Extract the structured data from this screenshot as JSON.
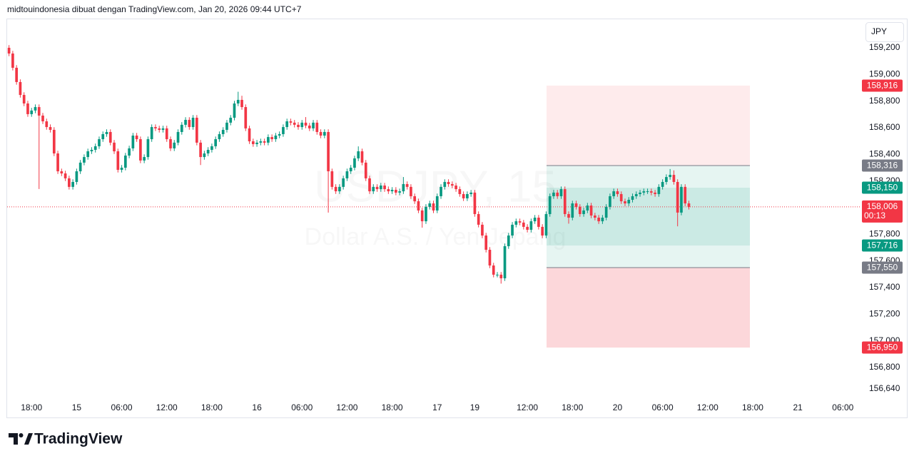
{
  "header": {
    "text": "midtouindonesia dibuat dengan TradingView.com, Jan 20, 2026 09:44 UTC+7"
  },
  "footer": {
    "brand": "TradingView"
  },
  "chart_data": {
    "type": "candlestick",
    "watermark": {
      "symbol": "USDJPY, 15",
      "description": "Dollar A.S. / Yen Jepang"
    },
    "currency": "JPY",
    "up_color": "#089981",
    "down_color": "#f23645",
    "grid": false,
    "ylim": [
      156.57,
      159.414
    ],
    "yticks": [
      {
        "value": 159.2,
        "label": "159,200"
      },
      {
        "value": 159.0,
        "label": "159,000"
      },
      {
        "value": 158.8,
        "label": "158,800"
      },
      {
        "value": 158.6,
        "label": "158,600"
      },
      {
        "value": 158.4,
        "label": "158,400"
      },
      {
        "value": 158.2,
        "label": "158,200"
      },
      {
        "value": 157.8,
        "label": "157,800"
      },
      {
        "value": 157.6,
        "label": "157,600"
      },
      {
        "value": 157.4,
        "label": "157,400"
      },
      {
        "value": 157.2,
        "label": "157,200"
      },
      {
        "value": 157.0,
        "label": "157,000"
      },
      {
        "value": 156.8,
        "label": "156,800"
      },
      {
        "value": 156.64,
        "label": "156,640"
      }
    ],
    "categories": [
      null,
      null,
      null,
      null,
      null,
      null,
      "18:00",
      null,
      null,
      null,
      null,
      null,
      null,
      null,
      null,
      null,
      null,
      null,
      "15",
      null,
      null,
      null,
      null,
      null,
      null,
      null,
      null,
      null,
      null,
      null,
      "06:00",
      null,
      null,
      null,
      null,
      null,
      null,
      null,
      null,
      null,
      null,
      null,
      "12:00",
      null,
      null,
      null,
      null,
      null,
      null,
      null,
      null,
      null,
      null,
      null,
      "18:00",
      null,
      null,
      null,
      null,
      null,
      null,
      null,
      null,
      null,
      null,
      null,
      "16",
      null,
      null,
      null,
      null,
      null,
      null,
      null,
      null,
      null,
      null,
      null,
      "06:00",
      null,
      null,
      null,
      null,
      null,
      null,
      null,
      null,
      null,
      null,
      null,
      "12:00",
      null,
      null,
      null,
      null,
      null,
      null,
      null,
      null,
      null,
      null,
      null,
      "18:00",
      null,
      null,
      null,
      null,
      null,
      null,
      null,
      null,
      null,
      null,
      null,
      "17",
      null,
      null,
      null,
      null,
      null,
      null,
      null,
      null,
      null,
      "19",
      null,
      null,
      null,
      null,
      null,
      null,
      null,
      null,
      null,
      null,
      null,
      null,
      null,
      "12:00",
      null,
      null,
      null,
      null,
      null,
      null,
      null,
      null,
      null,
      null,
      null,
      "18:00",
      null,
      null,
      null,
      null,
      null,
      null,
      null,
      null,
      null,
      null,
      null,
      "20",
      null,
      null,
      null,
      null,
      null,
      null,
      null,
      null,
      null,
      null,
      null,
      "06:00",
      null,
      null,
      null,
      null,
      null,
      null,
      null,
      null,
      null,
      null,
      null,
      "12:00",
      null,
      null,
      null,
      null,
      null,
      null,
      null,
      null,
      null,
      null,
      null,
      "18:00",
      null,
      null,
      null,
      null,
      null,
      null,
      null,
      null,
      null,
      null,
      null,
      "21",
      null,
      null,
      null,
      null,
      null,
      null,
      null,
      null,
      null,
      null,
      null,
      "06:00",
      null,
      null,
      null,
      null
    ],
    "open": [
      159.2,
      159.157,
      159.05,
      158.943,
      158.846,
      158.782,
      158.702,
      158.729,
      158.755,
      158.691,
      158.648,
      158.605,
      158.584,
      158.407,
      158.273,
      158.257,
      158.22,
      158.156,
      158.193,
      158.273,
      158.338,
      158.38,
      158.423,
      158.434,
      158.461,
      158.514,
      158.552,
      158.568,
      158.488,
      158.423,
      158.284,
      158.3,
      158.391,
      158.445,
      158.541,
      158.514,
      158.354,
      158.38,
      158.514,
      158.605,
      158.595,
      158.584,
      158.595,
      158.514,
      158.445,
      158.488,
      158.568,
      158.622,
      158.659,
      158.605,
      158.675,
      158.488,
      158.38,
      158.407,
      158.434,
      158.461,
      158.514,
      158.552,
      158.584,
      158.638,
      158.675,
      158.782,
      158.809,
      158.755,
      158.595,
      158.498,
      158.477,
      158.488,
      158.498,
      158.488,
      158.53,
      158.514,
      158.541,
      158.552,
      158.605,
      158.648,
      158.638,
      158.622,
      158.605,
      158.638,
      158.616,
      158.595,
      158.638,
      158.568,
      158.541,
      158.568,
      158.273,
      158.156,
      158.123,
      158.156,
      158.22,
      158.273,
      158.3,
      158.37,
      158.423,
      158.338,
      158.22,
      158.123,
      158.156,
      158.139,
      158.166,
      158.139,
      158.123,
      158.134,
      158.113,
      158.123,
      158.177,
      158.156,
      158.086,
      158.048,
      157.979,
      157.898,
      158.006,
      158.032,
      157.979,
      158.086,
      158.156,
      158.193,
      158.177,
      158.166,
      158.139,
      158.102,
      158.07,
      158.102,
      158.113,
      157.952,
      157.872,
      157.791,
      157.684,
      157.566,
      157.497,
      157.497,
      157.47,
      157.711,
      157.791,
      157.872,
      157.898,
      157.888,
      157.856,
      157.834,
      157.898,
      157.925,
      157.856,
      157.791,
      157.952,
      158.086,
      158.113,
      158.086,
      158.139,
      157.952,
      157.925,
      158.032,
      158.006,
      157.952,
      157.979,
      158.016,
      157.941,
      157.925,
      157.898,
      157.925,
      158.006,
      158.086,
      158.123,
      158.102,
      158.048,
      158.032,
      158.059,
      158.086,
      158.102,
      158.113,
      158.123,
      158.123,
      158.113,
      158.102,
      158.156,
      158.193,
      158.23,
      158.246,
      158.193,
      157.963,
      158.156,
      158.032,
      null,
      null,
      null,
      null,
      null,
      null,
      null,
      null,
      null,
      null,
      null,
      null,
      null,
      null,
      null,
      null,
      null,
      null,
      null,
      null,
      null,
      null,
      null,
      null,
      null,
      null,
      null,
      null,
      null,
      null,
      null,
      null,
      null,
      null,
      null,
      null,
      null,
      null,
      null,
      null,
      null,
      null,
      null,
      null,
      null
    ],
    "high": [
      159.22,
      159.177,
      159.07,
      158.963,
      158.866,
      158.802,
      158.749,
      158.775,
      158.775,
      158.711,
      158.668,
      158.625,
      158.604,
      158.427,
      158.293,
      158.277,
      158.24,
      158.213,
      158.293,
      158.358,
      158.4,
      158.443,
      158.454,
      158.481,
      158.534,
      158.572,
      158.588,
      158.588,
      158.508,
      158.443,
      158.32,
      158.411,
      158.465,
      158.561,
      158.561,
      158.534,
      158.4,
      158.534,
      158.625,
      158.625,
      158.615,
      158.615,
      158.615,
      158.534,
      158.508,
      158.588,
      158.642,
      158.679,
      158.679,
      158.695,
      158.695,
      158.508,
      158.427,
      158.454,
      158.481,
      158.534,
      158.572,
      158.604,
      158.658,
      158.695,
      158.802,
      158.87,
      158.84,
      158.775,
      158.615,
      158.518,
      158.508,
      158.518,
      158.518,
      158.55,
      158.55,
      158.561,
      158.572,
      158.625,
      158.668,
      158.668,
      158.658,
      158.642,
      158.658,
      158.68,
      158.636,
      158.658,
      158.658,
      158.588,
      158.588,
      158.588,
      158.293,
      158.176,
      158.176,
      158.24,
      158.293,
      158.32,
      158.39,
      158.46,
      158.443,
      158.358,
      158.24,
      158.176,
      158.176,
      158.186,
      158.186,
      158.159,
      158.154,
      158.154,
      158.143,
      158.23,
      158.197,
      158.176,
      158.106,
      158.068,
      157.999,
      158.026,
      158.052,
      158.052,
      158.106,
      158.176,
      158.213,
      158.213,
      158.197,
      158.186,
      158.159,
      158.122,
      158.122,
      158.133,
      158.133,
      157.972,
      157.892,
      157.811,
      157.704,
      157.586,
      157.517,
      157.517,
      157.731,
      157.811,
      157.892,
      157.918,
      157.918,
      157.908,
      157.876,
      157.918,
      157.945,
      157.945,
      157.876,
      157.972,
      158.106,
      158.133,
      158.133,
      158.159,
      158.159,
      157.972,
      158.052,
      158.052,
      158.026,
      157.999,
      158.036,
      158.036,
      157.961,
      157.945,
      157.945,
      158.026,
      158.106,
      158.143,
      158.143,
      158.122,
      158.068,
      158.079,
      158.106,
      158.122,
      158.133,
      158.143,
      158.143,
      158.143,
      158.133,
      158.176,
      158.213,
      158.25,
      158.29,
      158.28,
      158.213,
      158.176,
      158.176,
      158.052,
      null,
      null,
      null,
      null,
      null,
      null,
      null,
      null,
      null,
      null,
      null,
      null,
      null,
      null,
      null,
      null,
      null,
      null,
      null,
      null,
      null,
      null,
      null,
      null,
      null,
      null,
      null,
      null,
      null,
      null,
      null,
      null,
      null,
      null,
      null,
      null,
      null,
      null,
      null,
      null,
      null,
      null,
      null,
      null,
      null
    ],
    "low": [
      159.137,
      159.03,
      158.923,
      158.826,
      158.762,
      158.682,
      158.682,
      158.709,
      158.14,
      158.628,
      158.585,
      158.564,
      158.387,
      158.253,
      158.237,
      158.2,
      158.136,
      158.136,
      158.173,
      158.253,
      158.318,
      158.36,
      158.403,
      158.414,
      158.441,
      158.494,
      158.532,
      158.468,
      158.403,
      158.264,
      158.264,
      158.28,
      158.371,
      158.425,
      158.494,
      158.334,
      158.334,
      158.36,
      158.494,
      158.575,
      158.564,
      158.564,
      158.494,
      158.425,
      158.425,
      158.468,
      158.548,
      158.602,
      158.585,
      158.585,
      158.468,
      158.32,
      158.36,
      158.387,
      158.414,
      158.441,
      158.494,
      158.532,
      158.564,
      158.618,
      158.655,
      158.762,
      158.735,
      158.575,
      158.478,
      158.457,
      158.457,
      158.468,
      158.468,
      158.468,
      158.494,
      158.494,
      158.521,
      158.532,
      158.585,
      158.618,
      158.602,
      158.585,
      158.585,
      158.596,
      158.575,
      158.575,
      158.548,
      158.521,
      158.521,
      157.963,
      158.136,
      158.103,
      158.103,
      158.136,
      158.2,
      158.253,
      158.28,
      158.35,
      158.318,
      158.2,
      158.103,
      158.103,
      158.119,
      158.119,
      158.119,
      158.103,
      158.103,
      158.093,
      158.093,
      158.103,
      158.136,
      158.066,
      158.028,
      157.959,
      157.85,
      157.878,
      157.986,
      157.959,
      157.959,
      158.066,
      158.136,
      158.157,
      158.146,
      158.119,
      158.082,
      158.05,
      158.05,
      158.082,
      157.932,
      157.852,
      157.771,
      157.664,
      157.546,
      157.477,
      157.477,
      157.43,
      157.45,
      157.691,
      157.771,
      157.852,
      157.868,
      157.836,
      157.814,
      157.814,
      157.878,
      157.836,
      157.771,
      157.771,
      157.932,
      158.066,
      158.066,
      158.066,
      157.932,
      157.88,
      157.905,
      157.986,
      157.932,
      157.932,
      157.959,
      157.921,
      157.905,
      157.878,
      157.878,
      157.905,
      157.986,
      158.066,
      158.082,
      158.028,
      158.012,
      158.012,
      158.039,
      158.066,
      158.082,
      158.093,
      158.103,
      158.093,
      158.082,
      158.082,
      158.136,
      158.173,
      158.21,
      158.173,
      157.86,
      157.943,
      158.012,
      157.986,
      null,
      null,
      null,
      null,
      null,
      null,
      null,
      null,
      null,
      null,
      null,
      null,
      null,
      null,
      null,
      null,
      null,
      null,
      null,
      null,
      null,
      null,
      null,
      null,
      null,
      null,
      null,
      null,
      null,
      null,
      null,
      null,
      null,
      null,
      null,
      null,
      null,
      null,
      null,
      null,
      null,
      null,
      null,
      null,
      null
    ],
    "close": [
      159.157,
      159.05,
      158.943,
      158.846,
      158.782,
      158.702,
      158.729,
      158.755,
      158.691,
      158.648,
      158.605,
      158.584,
      158.407,
      158.273,
      158.257,
      158.22,
      158.156,
      158.193,
      158.273,
      158.338,
      158.38,
      158.423,
      158.434,
      158.461,
      158.514,
      158.552,
      158.568,
      158.488,
      158.423,
      158.284,
      158.3,
      158.391,
      158.445,
      158.541,
      158.514,
      158.354,
      158.38,
      158.514,
      158.605,
      158.595,
      158.584,
      158.595,
      158.514,
      158.445,
      158.488,
      158.568,
      158.622,
      158.659,
      158.605,
      158.675,
      158.488,
      158.38,
      158.407,
      158.434,
      158.461,
      158.514,
      158.552,
      158.584,
      158.638,
      158.675,
      158.782,
      158.809,
      158.755,
      158.595,
      158.498,
      158.477,
      158.488,
      158.498,
      158.488,
      158.53,
      158.514,
      158.541,
      158.552,
      158.605,
      158.648,
      158.638,
      158.622,
      158.605,
      158.638,
      158.616,
      158.595,
      158.638,
      158.568,
      158.541,
      158.568,
      158.273,
      158.156,
      158.123,
      158.156,
      158.22,
      158.273,
      158.3,
      158.37,
      158.423,
      158.338,
      158.22,
      158.123,
      158.156,
      158.139,
      158.166,
      158.139,
      158.123,
      158.134,
      158.113,
      158.123,
      158.177,
      158.156,
      158.086,
      158.048,
      157.979,
      157.898,
      158.006,
      158.032,
      157.979,
      158.086,
      158.156,
      158.193,
      158.177,
      158.166,
      158.139,
      158.102,
      158.07,
      158.102,
      158.113,
      157.952,
      157.872,
      157.791,
      157.684,
      157.566,
      157.497,
      157.497,
      157.47,
      157.711,
      157.791,
      157.872,
      157.898,
      157.888,
      157.856,
      157.834,
      157.898,
      157.925,
      157.856,
      157.791,
      157.952,
      158.086,
      158.113,
      158.086,
      158.139,
      157.952,
      157.925,
      158.032,
      158.006,
      157.952,
      157.979,
      158.016,
      157.941,
      157.925,
      157.898,
      157.925,
      158.006,
      158.086,
      158.123,
      158.102,
      158.048,
      158.032,
      158.059,
      158.086,
      158.102,
      158.113,
      158.123,
      158.123,
      158.113,
      158.102,
      158.156,
      158.193,
      158.23,
      158.246,
      158.193,
      157.963,
      158.156,
      158.032,
      158.006,
      null,
      null,
      null,
      null,
      null,
      null,
      null,
      null,
      null,
      null,
      null,
      null,
      null,
      null,
      null,
      null,
      null,
      null,
      null,
      null,
      null,
      null,
      null,
      null,
      null,
      null,
      null,
      null,
      null,
      null,
      null,
      null,
      null,
      null,
      null,
      null,
      null,
      null,
      null,
      null,
      null,
      null,
      null,
      null,
      null
    ],
    "position_tool": {
      "levels": [
        {
          "value": 158.916,
          "label": "158,916",
          "color": "#f23645"
        },
        {
          "value": 158.316,
          "label": "158,316",
          "color": "#787b86"
        },
        {
          "value": 158.15,
          "label": "158,150",
          "color": "#089981"
        },
        {
          "value": 157.716,
          "label": "157,716",
          "color": "#089981"
        },
        {
          "value": 157.55,
          "label": "157,550",
          "color": "#787b86"
        },
        {
          "value": 156.95,
          "label": "156,950",
          "color": "#f23645"
        }
      ]
    },
    "last_price": {
      "value": 158.006,
      "label": "158,006",
      "countdown": "00:13",
      "color": "#f23645"
    }
  }
}
